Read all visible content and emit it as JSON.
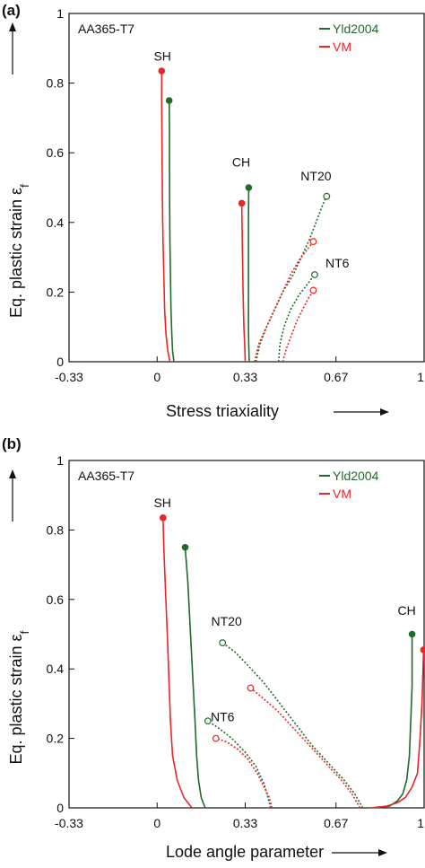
{
  "colors": {
    "Yld2004": "#1f6b2a",
    "VM": "#e8262a",
    "axis": "#111111"
  },
  "chart_data": [
    {
      "type": "line",
      "panel": "(a)",
      "material": "AA365-T7",
      "xlabel": "Stress triaxiality",
      "ylabel": "Eq. plastic strain ε",
      "ylabel_sub": "f",
      "xlim": [
        -0.33,
        1
      ],
      "ylim": [
        0,
        1
      ],
      "xticks": [
        "-0.33",
        "0",
        "0.33",
        "0.67",
        "1"
      ],
      "yticks": [
        "0",
        "0.2",
        "0.4",
        "0.6",
        "0.8",
        "1"
      ],
      "legend": [
        "Yld2004",
        "VM"
      ],
      "labels": [
        {
          "text": "SH",
          "x": 0.02,
          "y": 0.865
        },
        {
          "text": "CH",
          "x": 0.315,
          "y": 0.56
        },
        {
          "text": "NT20",
          "x": 0.595,
          "y": 0.52
        },
        {
          "text": "NT6",
          "x": 0.675,
          "y": 0.27
        }
      ],
      "series": [
        {
          "name": "Yld2004",
          "test": "SH",
          "style": "solid",
          "marker": "filled",
          "points": [
            [
              0.063,
              0
            ],
            [
              0.058,
              0.03
            ],
            [
              0.055,
              0.08
            ],
            [
              0.052,
              0.15
            ],
            [
              0.05,
              0.25
            ],
            [
              0.048,
              0.35
            ],
            [
              0.047,
              0.45
            ],
            [
              0.046,
              0.55
            ],
            [
              0.046,
              0.65
            ],
            [
              0.045,
              0.75
            ]
          ]
        },
        {
          "name": "VM",
          "test": "SH",
          "style": "solid",
          "marker": "filled",
          "points": [
            [
              0.048,
              0
            ],
            [
              0.04,
              0.03
            ],
            [
              0.033,
              0.08
            ],
            [
              0.028,
              0.15
            ],
            [
              0.025,
              0.25
            ],
            [
              0.022,
              0.35
            ],
            [
              0.02,
              0.45
            ],
            [
              0.019,
              0.55
            ],
            [
              0.018,
              0.65
            ],
            [
              0.017,
              0.75
            ],
            [
              0.017,
              0.835
            ]
          ]
        },
        {
          "name": "Yld2004",
          "test": "CH",
          "style": "solid",
          "marker": "filled",
          "points": [
            [
              0.345,
              0
            ],
            [
              0.343,
              0.05
            ],
            [
              0.342,
              0.1
            ],
            [
              0.342,
              0.2
            ],
            [
              0.342,
              0.3
            ],
            [
              0.342,
              0.4
            ],
            [
              0.343,
              0.5
            ]
          ]
        },
        {
          "name": "VM",
          "test": "CH",
          "style": "solid",
          "marker": "filled",
          "points": [
            [
              0.33,
              0
            ],
            [
              0.328,
              0.05
            ],
            [
              0.325,
              0.1
            ],
            [
              0.322,
              0.2
            ],
            [
              0.32,
              0.3
            ],
            [
              0.318,
              0.4
            ],
            [
              0.317,
              0.455
            ]
          ]
        },
        {
          "name": "Yld2004",
          "test": "NT20",
          "style": "dotted",
          "marker": "open",
          "points": [
            [
              0.37,
              0
            ],
            [
              0.385,
              0.05
            ],
            [
              0.41,
              0.1
            ],
            [
              0.44,
              0.15
            ],
            [
              0.47,
              0.2
            ],
            [
              0.51,
              0.25
            ],
            [
              0.54,
              0.3
            ],
            [
              0.57,
              0.35
            ],
            [
              0.595,
              0.4
            ],
            [
              0.62,
              0.45
            ],
            [
              0.635,
              0.475
            ]
          ]
        },
        {
          "name": "VM",
          "test": "NT20",
          "style": "dotted",
          "marker": "open",
          "points": [
            [
              0.365,
              0
            ],
            [
              0.38,
              0.05
            ],
            [
              0.41,
              0.1
            ],
            [
              0.44,
              0.15
            ],
            [
              0.47,
              0.2
            ],
            [
              0.5,
              0.25
            ],
            [
              0.53,
              0.29
            ],
            [
              0.56,
              0.32
            ],
            [
              0.585,
              0.345
            ]
          ]
        },
        {
          "name": "Yld2004",
          "test": "NT6",
          "style": "dotted",
          "marker": "open",
          "points": [
            [
              0.455,
              0
            ],
            [
              0.46,
              0.05
            ],
            [
              0.475,
              0.1
            ],
            [
              0.5,
              0.15
            ],
            [
              0.53,
              0.19
            ],
            [
              0.56,
              0.22
            ],
            [
              0.59,
              0.25
            ]
          ]
        },
        {
          "name": "VM",
          "test": "NT6",
          "style": "dotted",
          "marker": "open",
          "points": [
            [
              0.47,
              0
            ],
            [
              0.485,
              0.04
            ],
            [
              0.505,
              0.08
            ],
            [
              0.525,
              0.12
            ],
            [
              0.545,
              0.15
            ],
            [
              0.565,
              0.18
            ],
            [
              0.585,
              0.205
            ]
          ]
        }
      ]
    },
    {
      "type": "line",
      "panel": "(b)",
      "material": "AA365-T7",
      "xlabel": "Lode angle parameter",
      "ylabel": "Eq. plastic strain ε",
      "ylabel_sub": "f",
      "xlim": [
        -0.33,
        1
      ],
      "ylim": [
        0,
        1
      ],
      "xticks": [
        "-0.33",
        "0",
        "0.33",
        "0.67",
        "1"
      ],
      "yticks": [
        "0",
        "0.2",
        "0.4",
        "0.6",
        "0.8",
        "1"
      ],
      "legend": [
        "Yld2004",
        "VM"
      ],
      "labels": [
        {
          "text": "SH",
          "x": 0.02,
          "y": 0.865
        },
        {
          "text": "NT20",
          "x": 0.26,
          "y": 0.525
        },
        {
          "text": "NT6",
          "x": 0.245,
          "y": 0.25
        },
        {
          "text": "CH",
          "x": 0.935,
          "y": 0.555
        }
      ],
      "series": [
        {
          "name": "Yld2004",
          "test": "SH",
          "style": "solid",
          "marker": "filled",
          "points": [
            [
              0.18,
              0
            ],
            [
              0.165,
              0.03
            ],
            [
              0.155,
              0.08
            ],
            [
              0.148,
              0.15
            ],
            [
              0.142,
              0.25
            ],
            [
              0.135,
              0.35
            ],
            [
              0.125,
              0.5
            ],
            [
              0.115,
              0.65
            ],
            [
              0.105,
              0.75
            ]
          ]
        },
        {
          "name": "VM",
          "test": "SH",
          "style": "solid",
          "marker": "filled",
          "points": [
            [
              0.13,
              0
            ],
            [
              0.1,
              0.03
            ],
            [
              0.075,
              0.08
            ],
            [
              0.058,
              0.15
            ],
            [
              0.05,
              0.25
            ],
            [
              0.045,
              0.35
            ],
            [
              0.038,
              0.5
            ],
            [
              0.03,
              0.65
            ],
            [
              0.025,
              0.75
            ],
            [
              0.022,
              0.835
            ]
          ]
        },
        {
          "name": "Yld2004",
          "test": "NT20",
          "style": "dotted",
          "marker": "open",
          "points": [
            [
              0.77,
              0
            ],
            [
              0.74,
              0.04
            ],
            [
              0.7,
              0.08
            ],
            [
              0.64,
              0.13
            ],
            [
              0.58,
              0.18
            ],
            [
              0.52,
              0.24
            ],
            [
              0.46,
              0.3
            ],
            [
              0.4,
              0.36
            ],
            [
              0.34,
              0.41
            ],
            [
              0.29,
              0.45
            ],
            [
              0.245,
              0.475
            ]
          ]
        },
        {
          "name": "VM",
          "test": "NT20",
          "style": "dotted",
          "marker": "open",
          "points": [
            [
              0.76,
              0
            ],
            [
              0.73,
              0.04
            ],
            [
              0.69,
              0.08
            ],
            [
              0.63,
              0.13
            ],
            [
              0.57,
              0.18
            ],
            [
              0.51,
              0.23
            ],
            [
              0.45,
              0.28
            ],
            [
              0.39,
              0.32
            ],
            [
              0.35,
              0.345
            ]
          ]
        },
        {
          "name": "Yld2004",
          "test": "NT6",
          "style": "dotted",
          "marker": "open",
          "points": [
            [
              0.425,
              0
            ],
            [
              0.415,
              0.03
            ],
            [
              0.4,
              0.07
            ],
            [
              0.37,
              0.12
            ],
            [
              0.33,
              0.16
            ],
            [
              0.28,
              0.2
            ],
            [
              0.23,
              0.23
            ],
            [
              0.19,
              0.25
            ]
          ]
        },
        {
          "name": "VM",
          "test": "NT6",
          "style": "dotted",
          "marker": "open",
          "points": [
            [
              0.43,
              0
            ],
            [
              0.42,
              0.03
            ],
            [
              0.4,
              0.06
            ],
            [
              0.375,
              0.1
            ],
            [
              0.34,
              0.14
            ],
            [
              0.3,
              0.17
            ],
            [
              0.26,
              0.19
            ],
            [
              0.22,
              0.2
            ]
          ]
        },
        {
          "name": "Yld2004",
          "test": "CH",
          "style": "solid",
          "marker": "filled",
          "points": [
            [
              0.82,
              0
            ],
            [
              0.87,
              0.005
            ],
            [
              0.9,
              0.02
            ],
            [
              0.92,
              0.04
            ],
            [
              0.935,
              0.08
            ],
            [
              0.945,
              0.15
            ],
            [
              0.95,
              0.25
            ],
            [
              0.955,
              0.35
            ],
            [
              0.955,
              0.45
            ],
            [
              0.955,
              0.5
            ]
          ]
        },
        {
          "name": "VM",
          "test": "CH",
          "style": "solid",
          "marker": "filled",
          "points": [
            [
              0.8,
              0
            ],
            [
              0.86,
              0.005
            ],
            [
              0.9,
              0.015
            ],
            [
              0.93,
              0.03
            ],
            [
              0.955,
              0.06
            ],
            [
              0.975,
              0.1
            ],
            [
              0.985,
              0.2
            ],
            [
              0.992,
              0.3
            ],
            [
              0.996,
              0.4
            ],
            [
              0.998,
              0.455
            ]
          ]
        }
      ]
    }
  ]
}
